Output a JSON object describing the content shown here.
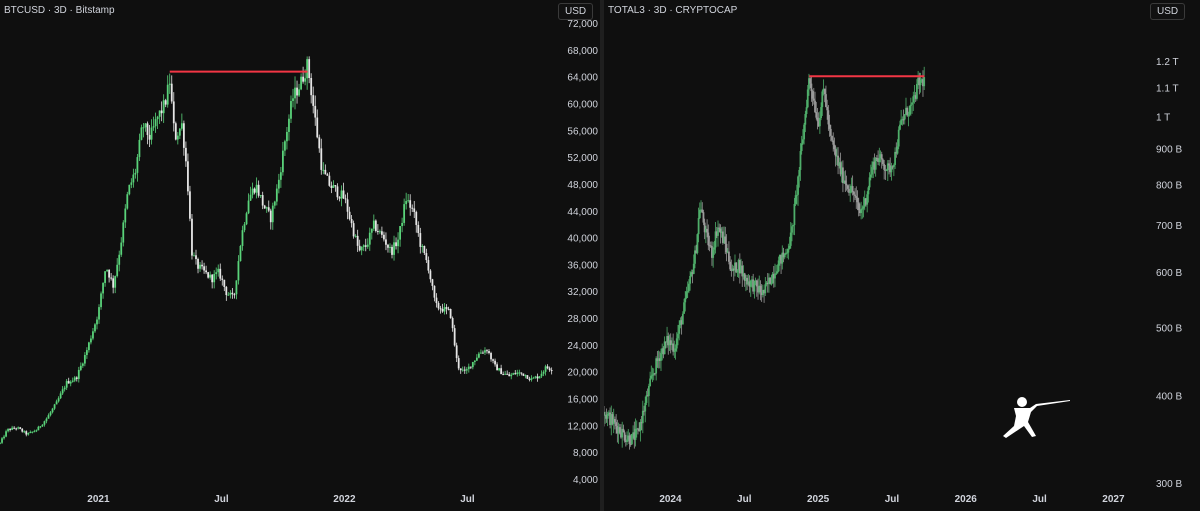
{
  "chart_data": [
    {
      "type": "candlestick",
      "title": "BTCUSD · 3D · Bitstamp",
      "currency_label": "USD",
      "x_ticks": [
        {
          "label": "2021",
          "t": 2021.0
        },
        {
          "label": "Jul",
          "t": 2021.5
        },
        {
          "label": "2022",
          "t": 2022.0
        },
        {
          "label": "Jul",
          "t": 2022.5
        }
      ],
      "y_ticks": [
        "4,000",
        "8,000",
        "12,000",
        "16,000",
        "20,000",
        "24,000",
        "28,000",
        "32,000",
        "36,000",
        "40,000",
        "44,000",
        "48,000",
        "52,000",
        "56,000",
        "60,000",
        "64,000",
        "68,000",
        "72,000"
      ],
      "ylim": [
        4000,
        72000
      ],
      "xlim": [
        2020.6,
        2022.86
      ],
      "price_path": [
        [
          2020.6,
          9500
        ],
        [
          2020.63,
          11500
        ],
        [
          2020.67,
          11800
        ],
        [
          2020.71,
          10800
        ],
        [
          2020.75,
          11500
        ],
        [
          2020.79,
          13200
        ],
        [
          2020.83,
          15500
        ],
        [
          2020.87,
          18500
        ],
        [
          2020.91,
          19200
        ],
        [
          2020.95,
          23000
        ],
        [
          2021.0,
          29000
        ],
        [
          2021.03,
          36000
        ],
        [
          2021.06,
          33000
        ],
        [
          2021.09,
          39000
        ],
        [
          2021.12,
          47000
        ],
        [
          2021.15,
          50000
        ],
        [
          2021.18,
          57000
        ],
        [
          2021.21,
          55000
        ],
        [
          2021.24,
          58000
        ],
        [
          2021.27,
          60000
        ],
        [
          2021.29,
          63500
        ],
        [
          2021.31,
          55000
        ],
        [
          2021.34,
          57000
        ],
        [
          2021.36,
          50000
        ],
        [
          2021.38,
          38000
        ],
        [
          2021.4,
          36000
        ],
        [
          2021.43,
          35000
        ],
        [
          2021.46,
          34000
        ],
        [
          2021.49,
          35000
        ],
        [
          2021.52,
          32000
        ],
        [
          2021.55,
          31000
        ],
        [
          2021.58,
          40000
        ],
        [
          2021.61,
          46000
        ],
        [
          2021.64,
          48000
        ],
        [
          2021.67,
          45000
        ],
        [
          2021.7,
          43000
        ],
        [
          2021.73,
          48000
        ],
        [
          2021.76,
          55000
        ],
        [
          2021.79,
          61000
        ],
        [
          2021.82,
          63000
        ],
        [
          2021.85,
          66000
        ],
        [
          2021.88,
          58000
        ],
        [
          2021.91,
          50000
        ],
        [
          2021.94,
          48000
        ],
        [
          2021.97,
          47000
        ],
        [
          2022.0,
          46000
        ],
        [
          2022.03,
          42000
        ],
        [
          2022.06,
          38000
        ],
        [
          2022.09,
          39000
        ],
        [
          2022.12,
          42000
        ],
        [
          2022.16,
          40000
        ],
        [
          2022.19,
          38000
        ],
        [
          2022.22,
          40000
        ],
        [
          2022.25,
          46000
        ],
        [
          2022.28,
          44000
        ],
        [
          2022.31,
          39000
        ],
        [
          2022.34,
          36000
        ],
        [
          2022.37,
          30000
        ],
        [
          2022.4,
          29500
        ],
        [
          2022.43,
          29000
        ],
        [
          2022.46,
          21000
        ],
        [
          2022.49,
          20000
        ],
        [
          2022.52,
          21500
        ],
        [
          2022.55,
          23000
        ],
        [
          2022.58,
          23500
        ],
        [
          2022.61,
          21000
        ],
        [
          2022.64,
          20000
        ],
        [
          2022.67,
          19500
        ],
        [
          2022.7,
          20000
        ],
        [
          2022.73,
          19800
        ],
        [
          2022.76,
          19000
        ],
        [
          2022.79,
          19500
        ],
        [
          2022.82,
          20800
        ],
        [
          2022.85,
          20500
        ]
      ],
      "resistance_line": {
        "t_start": 2021.29,
        "t_end": 2021.85,
        "value": 64900,
        "color": "#f23645"
      }
    },
    {
      "type": "candlestick",
      "title": "TOTAL3 · 3D · CRYPTOCAP",
      "currency_label": "USD",
      "x_ticks": [
        {
          "label": "2024",
          "t": 2024.0
        },
        {
          "label": "Jul",
          "t": 2024.5
        },
        {
          "label": "2025",
          "t": 2025.0
        },
        {
          "label": "Jul",
          "t": 2025.5
        },
        {
          "label": "2026",
          "t": 2026.0
        },
        {
          "label": "Jul",
          "t": 2026.5
        },
        {
          "label": "2027",
          "t": 2027.0
        }
      ],
      "y_ticks": [
        "300 B",
        "400 B",
        "500 B",
        "600 B",
        "700 B",
        "800 B",
        "900 B",
        "1 T",
        "1.1 T",
        "1.2 T"
      ],
      "y_tick_values": [
        300,
        400,
        500,
        600,
        700,
        800,
        900,
        1000,
        1100,
        1200
      ],
      "ylim": [
        300,
        1250
      ],
      "xlim": [
        2023.55,
        2027.18
      ],
      "price_path": [
        [
          2023.55,
          380
        ],
        [
          2023.6,
          370
        ],
        [
          2023.65,
          360
        ],
        [
          2023.7,
          350
        ],
        [
          2023.74,
          348
        ],
        [
          2023.78,
          355
        ],
        [
          2023.83,
          390
        ],
        [
          2023.88,
          430
        ],
        [
          2023.93,
          460
        ],
        [
          2023.98,
          480
        ],
        [
          2024.03,
          470
        ],
        [
          2024.08,
          520
        ],
        [
          2024.13,
          580
        ],
        [
          2024.17,
          640
        ],
        [
          2024.2,
          750
        ],
        [
          2024.24,
          680
        ],
        [
          2024.28,
          640
        ],
        [
          2024.32,
          700
        ],
        [
          2024.37,
          660
        ],
        [
          2024.42,
          600
        ],
        [
          2024.46,
          620
        ],
        [
          2024.5,
          590
        ],
        [
          2024.55,
          580
        ],
        [
          2024.59,
          570
        ],
        [
          2024.63,
          560
        ],
        [
          2024.68,
          590
        ],
        [
          2024.73,
          620
        ],
        [
          2024.78,
          640
        ],
        [
          2024.82,
          680
        ],
        [
          2024.86,
          800
        ],
        [
          2024.9,
          950
        ],
        [
          2024.94,
          1140
        ],
        [
          2024.97,
          1060
        ],
        [
          2025.0,
          980
        ],
        [
          2025.04,
          1100
        ],
        [
          2025.08,
          940
        ],
        [
          2025.12,
          880
        ],
        [
          2025.16,
          830
        ],
        [
          2025.2,
          800
        ],
        [
          2025.24,
          780
        ],
        [
          2025.28,
          730
        ],
        [
          2025.32,
          760
        ],
        [
          2025.36,
          840
        ],
        [
          2025.4,
          880
        ],
        [
          2025.44,
          860
        ],
        [
          2025.48,
          840
        ],
        [
          2025.52,
          880
        ],
        [
          2025.56,
          980
        ],
        [
          2025.6,
          1020
        ],
        [
          2025.64,
          1040
        ],
        [
          2025.68,
          1120
        ],
        [
          2025.72,
          1130
        ]
      ],
      "resistance_line": {
        "t_start": 2024.94,
        "t_end": 2025.72,
        "value": 1145,
        "color": "#f23645"
      }
    }
  ],
  "colors": {
    "up": "#5ad37a",
    "down": "#e6e6e6",
    "right_up": "#4fae6a",
    "right_down": "#9a9a9a",
    "axis_text": "#d1d4dc",
    "background": "#0f0f0f"
  },
  "watermark_icon": "fencer-logo-icon"
}
